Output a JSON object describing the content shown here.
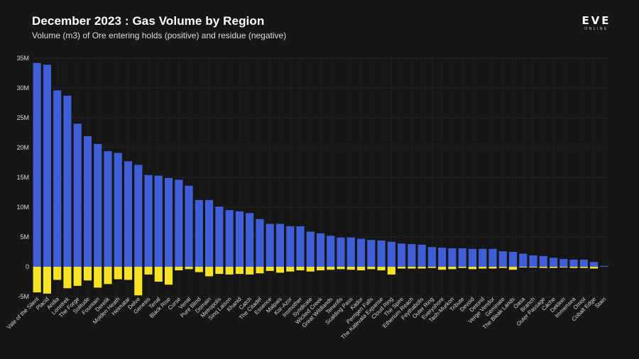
{
  "header": {
    "title": "December 2023 : Gas Volume by Region",
    "subtitle": "Volume (m3) of Ore entering holds (positive) and residue (negative)"
  },
  "logo": {
    "main": "EVE",
    "sub": "ONLINE"
  },
  "colors": {
    "positive": "#3f5fd9",
    "negative": "#f7e225",
    "background": "#161616",
    "grid": "#2c2c2c",
    "axis_text": "#d8d8d8"
  },
  "chart_data": {
    "type": "bar",
    "title": "December 2023 : Gas Volume by Region",
    "subtitle": "Volume (m3) of Ore entering holds (positive) and residue (negative)",
    "xlabel": "",
    "ylabel": "",
    "ylim": [
      -5000000,
      35000000
    ],
    "yticks": [
      -5000000,
      0,
      5000000,
      10000000,
      15000000,
      20000000,
      25000000,
      30000000,
      35000000
    ],
    "ytick_labels": [
      "-5M",
      "0",
      "5M",
      "10M",
      "15M",
      "20M",
      "25M",
      "30M",
      "35M"
    ],
    "grid": true,
    "categories": [
      "Vale of the Silent",
      "Placid",
      "Aridia",
      "Lonetrek",
      "The Forge",
      "Solitude",
      "Fountain",
      "Derelik",
      "Molden Heath",
      "Heimatar",
      "Delve",
      "Genesis",
      "Tenal",
      "Black Rise",
      "Curse",
      "Venal",
      "Pure Blind",
      "Domain",
      "Metropolis",
      "Sinq Laison",
      "Khanid",
      "Catch",
      "The Citadel",
      "Essence",
      "Malpais",
      "Kor-Azor",
      "Insmother",
      "Syndicate",
      "Wicked Creek",
      "Great Wildlands",
      "Tenerifis",
      "Scalding Pass",
      "Kador",
      "Perrigen Falls",
      "The Kalevala Expanse",
      "Cloud Ring",
      "The Spire",
      "Etherium Reach",
      "Feythabolis",
      "Outer Ring",
      "Everyshore",
      "Tash-Murkon",
      "Tribute",
      "Devoid",
      "Detorid",
      "Verge Vendor",
      "Geminate",
      "The Bleak Lands",
      "Oasa",
      "Branch",
      "Outer Passage",
      "Cache",
      "Deklein",
      "Immensea",
      "Omist",
      "Cobalt Edge",
      "Stain"
    ],
    "series": [
      {
        "name": "Entering holds (positive)",
        "color": "#3f5fd9",
        "values": [
          34200000,
          33900000,
          29600000,
          28700000,
          24000000,
          21900000,
          20600000,
          19400000,
          19100000,
          17700000,
          17100000,
          15400000,
          15300000,
          14900000,
          14600000,
          13600000,
          11200000,
          11200000,
          10100000,
          9500000,
          9300000,
          9000000,
          8000000,
          7200000,
          7200000,
          6800000,
          6800000,
          5900000,
          5600000,
          5200000,
          4900000,
          4900000,
          4700000,
          4500000,
          4400000,
          4200000,
          3900000,
          3800000,
          3700000,
          3300000,
          3200000,
          3100000,
          3100000,
          3000000,
          3000000,
          3000000,
          2600000,
          2500000,
          2200000,
          1900000,
          1800000,
          1500000,
          1300000,
          1200000,
          1200000,
          800000,
          150000
        ]
      },
      {
        "name": "Residue (negative)",
        "color": "#f7e225",
        "values": [
          -4300000,
          -4500000,
          -2200000,
          -3600000,
          -3200000,
          -2300000,
          -3500000,
          -2900000,
          -2100000,
          -2200000,
          -4800000,
          -1300000,
          -2500000,
          -3000000,
          -600000,
          -400000,
          -900000,
          -1600000,
          -1200000,
          -1300000,
          -1200000,
          -1300000,
          -1100000,
          -700000,
          -1000000,
          -800000,
          -600000,
          -800000,
          -600000,
          -500000,
          -400000,
          -500000,
          -600000,
          -400000,
          -600000,
          -1300000,
          -300000,
          -300000,
          -300000,
          -200000,
          -500000,
          -400000,
          -200000,
          -400000,
          -300000,
          -300000,
          -200000,
          -500000,
          -100000,
          -100000,
          -200000,
          -200000,
          -100000,
          -200000,
          -200000,
          -300000,
          0
        ]
      }
    ]
  }
}
